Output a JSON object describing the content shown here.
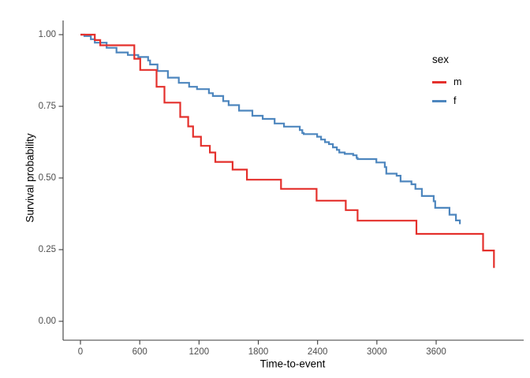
{
  "figure": {
    "background": "#ffffff",
    "axis_line_color": "#3b3b3b",
    "tick_text_color": "#4d4d4d"
  },
  "chart_data": {
    "type": "line",
    "subtype": "kaplan-meier-step",
    "title": "",
    "xlabel": "Time-to-event",
    "ylabel": "Survival probability",
    "xlim": [
      0,
      4480
    ],
    "ylim": [
      0.0,
      1.0
    ],
    "grid": false,
    "x_ticks": {
      "values": [
        0,
        600,
        1200,
        1800,
        2400,
        3000,
        3600
      ],
      "labels": [
        "0",
        "600",
        "1200",
        "1800",
        "2400",
        "3000",
        "3600"
      ]
    },
    "y_ticks": {
      "values": [
        0.0,
        0.25,
        0.5,
        0.75,
        1.0
      ],
      "labels": [
        "0.00",
        "0.25",
        "0.50",
        "0.75",
        "1.00"
      ]
    },
    "legend": {
      "title": "sex",
      "position": "right-top"
    },
    "series": [
      {
        "name": "m",
        "color": "#E4302C",
        "points": [
          [
            0,
            1.0
          ],
          [
            145,
            0.981
          ],
          [
            200,
            0.963
          ],
          [
            545,
            0.916
          ],
          [
            605,
            0.877
          ],
          [
            770,
            0.818
          ],
          [
            850,
            0.763
          ],
          [
            1010,
            0.713
          ],
          [
            1090,
            0.68
          ],
          [
            1140,
            0.644
          ],
          [
            1220,
            0.612
          ],
          [
            1310,
            0.589
          ],
          [
            1365,
            0.556
          ],
          [
            1540,
            0.529
          ],
          [
            1685,
            0.494
          ],
          [
            2030,
            0.462
          ],
          [
            2390,
            0.421
          ],
          [
            2685,
            0.388
          ],
          [
            2805,
            0.351
          ],
          [
            3400,
            0.305
          ],
          [
            4075,
            0.247
          ],
          [
            4185,
            0.186
          ]
        ]
      },
      {
        "name": "f",
        "color": "#4D86BE",
        "points": [
          [
            0,
            1.0
          ],
          [
            40,
            0.995
          ],
          [
            105,
            0.984
          ],
          [
            145,
            0.972
          ],
          [
            265,
            0.954
          ],
          [
            365,
            0.938
          ],
          [
            480,
            0.929
          ],
          [
            585,
            0.922
          ],
          [
            685,
            0.91
          ],
          [
            705,
            0.896
          ],
          [
            780,
            0.873
          ],
          [
            885,
            0.85
          ],
          [
            995,
            0.832
          ],
          [
            1100,
            0.818
          ],
          [
            1180,
            0.81
          ],
          [
            1300,
            0.796
          ],
          [
            1340,
            0.786
          ],
          [
            1445,
            0.768
          ],
          [
            1500,
            0.754
          ],
          [
            1605,
            0.735
          ],
          [
            1740,
            0.717
          ],
          [
            1845,
            0.706
          ],
          [
            1965,
            0.69
          ],
          [
            2060,
            0.679
          ],
          [
            2220,
            0.667
          ],
          [
            2245,
            0.657
          ],
          [
            2260,
            0.653
          ],
          [
            2395,
            0.644
          ],
          [
            2435,
            0.634
          ],
          [
            2475,
            0.625
          ],
          [
            2515,
            0.618
          ],
          [
            2555,
            0.607
          ],
          [
            2595,
            0.598
          ],
          [
            2620,
            0.589
          ],
          [
            2675,
            0.584
          ],
          [
            2760,
            0.579
          ],
          [
            2795,
            0.57
          ],
          [
            2805,
            0.566
          ],
          [
            2995,
            0.554
          ],
          [
            3080,
            0.538
          ],
          [
            3095,
            0.515
          ],
          [
            3200,
            0.508
          ],
          [
            3240,
            0.488
          ],
          [
            3350,
            0.478
          ],
          [
            3390,
            0.462
          ],
          [
            3455,
            0.437
          ],
          [
            3575,
            0.419
          ],
          [
            3590,
            0.396
          ],
          [
            3735,
            0.372
          ],
          [
            3800,
            0.352
          ],
          [
            3840,
            0.339
          ]
        ]
      }
    ]
  }
}
